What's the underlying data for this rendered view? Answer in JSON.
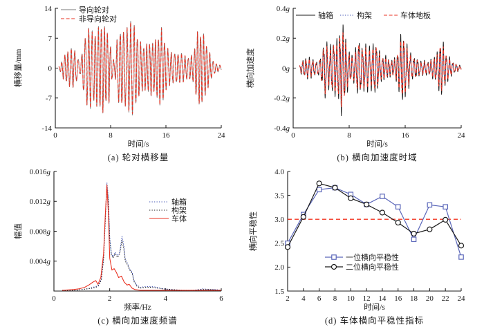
{
  "page": {
    "background": "#ffffff"
  },
  "colors": {
    "axis": "#1a1a1a",
    "black_series": "#1a1a1a",
    "gray_series": "#7a7a7a",
    "red_series": "#e93323",
    "blue_dotted_series": "#4254b5",
    "blue_marker_series": "#5a66b9",
    "threshold_red": "#f2321e"
  },
  "chart_data": [
    {
      "type": "line",
      "subtype": "waveform",
      "caption": "(a)  轮对横移量",
      "xlabel": "时间/s",
      "ylabel": "横移量/mm",
      "xlim": [
        0,
        24
      ],
      "ylim": [
        -14,
        14
      ],
      "xticks": {
        "values": [
          0,
          8,
          16,
          24
        ],
        "labels": [
          "0",
          "8",
          "16",
          "24"
        ]
      },
      "yticks": {
        "values": [
          14,
          7,
          0,
          -7,
          -14
        ],
        "labels": [
          "14",
          "7",
          "0",
          "-7",
          "-14"
        ]
      },
      "grid": false,
      "legend_position": "top-left-inside",
      "freq_hz": 2.15,
      "envelope_mm": [
        [
          0.5,
          0.3
        ],
        [
          0.9,
          1.5
        ],
        [
          1.3,
          3.6
        ],
        [
          1.8,
          4.5
        ],
        [
          2.3,
          4.3
        ],
        [
          2.8,
          4.2
        ],
        [
          3.2,
          3.0
        ],
        [
          3.6,
          1.6
        ],
        [
          4.0,
          6.0
        ],
        [
          4.5,
          8.5
        ],
        [
          5.2,
          9.2
        ],
        [
          6.0,
          10.2
        ],
        [
          6.6,
          9.9
        ],
        [
          7.2,
          9.4
        ],
        [
          7.8,
          9.0
        ],
        [
          8.2,
          3.2
        ],
        [
          8.6,
          1.4
        ],
        [
          9.0,
          7.5
        ],
        [
          9.6,
          10.0
        ],
        [
          10.2,
          10.8
        ],
        [
          10.8,
          10.4
        ],
        [
          11.4,
          9.9
        ],
        [
          12.0,
          8.2
        ],
        [
          12.6,
          6.0
        ],
        [
          13.2,
          5.2
        ],
        [
          13.8,
          6.4
        ],
        [
          14.4,
          7.3
        ],
        [
          15.0,
          8.6
        ],
        [
          15.4,
          8.9
        ],
        [
          16.0,
          5.4
        ],
        [
          16.6,
          4.5
        ],
        [
          17.2,
          3.9
        ],
        [
          17.8,
          3.4
        ],
        [
          18.4,
          3.7
        ],
        [
          19.2,
          2.8
        ],
        [
          20.0,
          3.0
        ],
        [
          20.5,
          9.0
        ],
        [
          21.0,
          10.2
        ],
        [
          21.5,
          8.0
        ],
        [
          22.0,
          4.8
        ],
        [
          22.6,
          2.5
        ],
        [
          23.2,
          1.3
        ],
        [
          24.0,
          0.5
        ]
      ],
      "series": [
        {
          "name": "导向轮对",
          "color": "#7a7a7a",
          "dash": "solid",
          "width": 0.9,
          "scale": 1.0,
          "phase": 0.0,
          "harm": 0.1
        },
        {
          "name": "非导向轮对",
          "color": "#e93323",
          "dash": "dash",
          "width": 1.0,
          "scale": 0.98,
          "phase": 0.06,
          "harm": 0.1
        }
      ]
    },
    {
      "type": "line",
      "subtype": "waveform",
      "caption": "(b)  横向加速度时域",
      "xlabel": "时间/s",
      "ylabel": "横向加速度",
      "xlim": [
        0,
        24
      ],
      "ylim": [
        -0.4,
        0.4
      ],
      "xticks": {
        "values": [
          0,
          8,
          16,
          24
        ],
        "labels": [
          "0",
          "8",
          "16",
          "24"
        ]
      },
      "yticks": {
        "values": [
          0.4,
          0.2,
          0,
          -0.2,
          -0.4
        ],
        "labels": [
          "0.4g",
          "0.2g",
          "0g",
          "-0.2g",
          "-0.4g"
        ]
      },
      "grid": false,
      "legend_position": "top-row-inside",
      "freq_hz": 2.15,
      "envelope_g": [
        [
          0.9,
          0.02
        ],
        [
          1.3,
          0.06
        ],
        [
          1.8,
          0.08
        ],
        [
          2.3,
          0.07
        ],
        [
          2.8,
          0.06
        ],
        [
          3.3,
          0.05
        ],
        [
          3.8,
          0.08
        ],
        [
          4.2,
          0.14
        ],
        [
          4.6,
          0.21
        ],
        [
          5.0,
          0.13
        ],
        [
          5.4,
          0.18
        ],
        [
          5.8,
          0.24
        ],
        [
          6.2,
          0.2
        ],
        [
          6.6,
          0.26
        ],
        [
          7.0,
          0.31
        ],
        [
          7.4,
          0.25
        ],
        [
          7.8,
          0.17
        ],
        [
          8.2,
          0.11
        ],
        [
          8.6,
          0.09
        ],
        [
          9.0,
          0.14
        ],
        [
          9.4,
          0.22
        ],
        [
          9.8,
          0.17
        ],
        [
          10.2,
          0.2
        ],
        [
          10.6,
          0.17
        ],
        [
          11.0,
          0.13
        ],
        [
          11.4,
          0.16
        ],
        [
          11.8,
          0.21
        ],
        [
          12.2,
          0.15
        ],
        [
          12.6,
          0.1
        ],
        [
          13.2,
          0.08
        ],
        [
          13.8,
          0.06
        ],
        [
          14.4,
          0.07
        ],
        [
          15.0,
          0.14
        ],
        [
          15.4,
          0.22
        ],
        [
          15.8,
          0.24
        ],
        [
          16.2,
          0.18
        ],
        [
          16.6,
          0.15
        ],
        [
          17.0,
          0.09
        ],
        [
          17.6,
          0.07
        ],
        [
          18.2,
          0.05
        ],
        [
          18.8,
          0.06
        ],
        [
          19.4,
          0.05
        ],
        [
          20.0,
          0.07
        ],
        [
          20.6,
          0.12
        ],
        [
          21.0,
          0.23
        ],
        [
          21.4,
          0.19
        ],
        [
          21.8,
          0.11
        ],
        [
          22.2,
          0.08
        ],
        [
          22.8,
          0.05
        ],
        [
          23.4,
          0.03
        ],
        [
          24.0,
          0.015
        ]
      ],
      "series": [
        {
          "name": "轴箱",
          "color": "#1a1a1a",
          "dash": "solid",
          "width": 0.9,
          "scale": 1.0,
          "phase": 0.0,
          "harm": 0.25
        },
        {
          "name": "构架",
          "color": "#4254b5",
          "dash": "dot",
          "width": 1.0,
          "scale": 0.55,
          "phase": 0.1,
          "harm": 0.06
        },
        {
          "name": "车体地板",
          "color": "#e93323",
          "dash": "dash",
          "width": 1.1,
          "scale": 0.8,
          "phase": 0.15,
          "harm": 0.08
        }
      ]
    },
    {
      "type": "line",
      "subtype": "spectrum",
      "caption": "(c)  横向加速度频谱",
      "xlabel": "频率/Hz",
      "ylabel": "幅值",
      "xlim": [
        0,
        6
      ],
      "ylim": [
        0,
        0.016
      ],
      "xticks": {
        "values": [
          0,
          2,
          4,
          6
        ],
        "labels": [
          "0",
          "2",
          "4",
          "6"
        ]
      },
      "yticks": {
        "values": [
          0.016,
          0.012,
          0.008,
          0.004
        ],
        "labels": [
          "0.016g",
          "0.012g",
          "0.008g",
          "0.004g"
        ]
      },
      "grid": false,
      "legend_position": "middle-right-inside",
      "main_peak_hz": 1.9,
      "series": [
        {
          "name": "轴箱",
          "color": "#4254b5",
          "dash": "dot",
          "width": 1.1,
          "points": [
            [
              0.3,
              0.0001
            ],
            [
              0.8,
              0.0001
            ],
            [
              1.0,
              0.0002
            ],
            [
              1.2,
              0.0003
            ],
            [
              1.4,
              0.0005
            ],
            [
              1.5,
              0.0006
            ],
            [
              1.6,
              0.0008
            ],
            [
              1.7,
              0.0016
            ],
            [
              1.78,
              0.0045
            ],
            [
              1.84,
              0.0095
            ],
            [
              1.9,
              0.0145
            ],
            [
              1.95,
              0.0125
            ],
            [
              2.0,
              0.0072
            ],
            [
              2.06,
              0.005
            ],
            [
              2.12,
              0.0046
            ],
            [
              2.2,
              0.0052
            ],
            [
              2.28,
              0.0047
            ],
            [
              2.36,
              0.0052
            ],
            [
              2.44,
              0.0073
            ],
            [
              2.5,
              0.0062
            ],
            [
              2.56,
              0.0042
            ],
            [
              2.64,
              0.0037
            ],
            [
              2.72,
              0.0029
            ],
            [
              2.8,
              0.0026
            ],
            [
              2.88,
              0.0013
            ],
            [
              2.96,
              0.0008
            ],
            [
              3.1,
              0.0005
            ],
            [
              3.3,
              0.0006
            ],
            [
              3.5,
              0.0006
            ],
            [
              3.7,
              0.0005
            ],
            [
              3.9,
              0.0003
            ],
            [
              4.2,
              0.0002
            ],
            [
              4.6,
              0.0001
            ],
            [
              5.0,
              0.0001
            ],
            [
              5.35,
              0.0003
            ],
            [
              5.6,
              0.0002
            ],
            [
              5.8,
              0.0002
            ],
            [
              6.0,
              0.0001
            ]
          ]
        },
        {
          "name": "构架",
          "color": "#1a1a1a",
          "dash": "dot",
          "width": 1.1,
          "points": [
            [
              0.3,
              0.0001
            ],
            [
              0.8,
              0.0001
            ],
            [
              1.0,
              0.0002
            ],
            [
              1.2,
              0.0003
            ],
            [
              1.4,
              0.0004
            ],
            [
              1.5,
              0.0005
            ],
            [
              1.6,
              0.0007
            ],
            [
              1.7,
              0.0015
            ],
            [
              1.78,
              0.0043
            ],
            [
              1.84,
              0.0092
            ],
            [
              1.9,
              0.0142
            ],
            [
              1.95,
              0.012
            ],
            [
              2.0,
              0.0068
            ],
            [
              2.06,
              0.0048
            ],
            [
              2.12,
              0.0044
            ],
            [
              2.2,
              0.005
            ],
            [
              2.28,
              0.0045
            ],
            [
              2.36,
              0.005
            ],
            [
              2.44,
              0.0068
            ],
            [
              2.5,
              0.0058
            ],
            [
              2.56,
              0.004
            ],
            [
              2.64,
              0.0035
            ],
            [
              2.72,
              0.0028
            ],
            [
              2.8,
              0.0024
            ],
            [
              2.88,
              0.0012
            ],
            [
              2.96,
              0.0007
            ],
            [
              3.1,
              0.0004
            ],
            [
              3.3,
              0.0005
            ],
            [
              3.5,
              0.0005
            ],
            [
              3.7,
              0.0004
            ],
            [
              3.9,
              0.0003
            ],
            [
              4.2,
              0.0002
            ],
            [
              4.6,
              0.0001
            ],
            [
              5.0,
              0.0001
            ],
            [
              5.35,
              0.0002
            ],
            [
              5.6,
              0.0002
            ],
            [
              6.0,
              0.0001
            ]
          ]
        },
        {
          "name": "车体",
          "color": "#e93323",
          "dash": "solid",
          "width": 1.1,
          "points": [
            [
              0.3,
              0.0001
            ],
            [
              0.7,
              0.0002
            ],
            [
              0.9,
              0.0003
            ],
            [
              1.1,
              0.0005
            ],
            [
              1.25,
              0.0008
            ],
            [
              1.4,
              0.0012
            ],
            [
              1.5,
              0.0014
            ],
            [
              1.58,
              0.0009
            ],
            [
              1.68,
              0.0018
            ],
            [
              1.78,
              0.005
            ],
            [
              1.84,
              0.01
            ],
            [
              1.9,
              0.0142
            ],
            [
              1.95,
              0.0105
            ],
            [
              2.0,
              0.0044
            ],
            [
              2.08,
              0.0028
            ],
            [
              2.16,
              0.003
            ],
            [
              2.24,
              0.0025
            ],
            [
              2.32,
              0.0018
            ],
            [
              2.42,
              0.002
            ],
            [
              2.52,
              0.0012
            ],
            [
              2.62,
              0.0008
            ],
            [
              2.7,
              0.0009
            ],
            [
              2.8,
              0.0004
            ],
            [
              2.9,
              0.0002
            ],
            [
              3.1,
              0.0001
            ],
            [
              3.5,
              0.0001
            ],
            [
              4.0,
              0.0001
            ],
            [
              5.0,
              0.0001
            ],
            [
              6.0,
              0.0001
            ]
          ]
        }
      ]
    },
    {
      "type": "line",
      "subtype": "markers",
      "caption": "(d)  车体横向平稳性指标",
      "xlabel": "时间/s",
      "ylabel": "横向平稳性",
      "xlim": [
        2,
        24
      ],
      "ylim": [
        1.5,
        4.0
      ],
      "xticks": {
        "values": [
          2,
          4,
          6,
          8,
          10,
          12,
          14,
          16,
          18,
          20,
          22,
          24
        ],
        "labels": [
          "2",
          "4",
          "6",
          "8",
          "10",
          "12",
          "14",
          "16",
          "18",
          "20",
          "22",
          "24"
        ]
      },
      "yticks": {
        "values": [
          4.0,
          3.5,
          3.0,
          2.5,
          2.0,
          1.5
        ],
        "labels": [
          "4.0",
          "3.5",
          "3.0",
          "2.5",
          "2.0",
          "1.5"
        ]
      },
      "grid": false,
      "legend_position": "bottom-center-inside",
      "threshold": {
        "value": 3.0,
        "color": "#f2321e",
        "dash": "dash"
      },
      "x": [
        2,
        4,
        6,
        8,
        10,
        12,
        14,
        16,
        18,
        20,
        22,
        24
      ],
      "series": [
        {
          "name": "一位横向平稳性",
          "color": "#5a66b9",
          "dash": "solid",
          "width": 1.2,
          "marker": "square",
          "values": [
            2.5,
            3.1,
            3.62,
            3.66,
            3.52,
            3.31,
            3.48,
            3.26,
            2.58,
            3.3,
            3.26,
            2.21
          ]
        },
        {
          "name": "二位横向平稳性",
          "color": "#1a1a1a",
          "dash": "solid",
          "width": 1.2,
          "marker": "circle",
          "values": [
            2.42,
            3.05,
            3.75,
            3.66,
            3.44,
            3.31,
            3.14,
            2.93,
            2.7,
            2.79,
            2.99,
            2.45
          ]
        }
      ]
    }
  ]
}
